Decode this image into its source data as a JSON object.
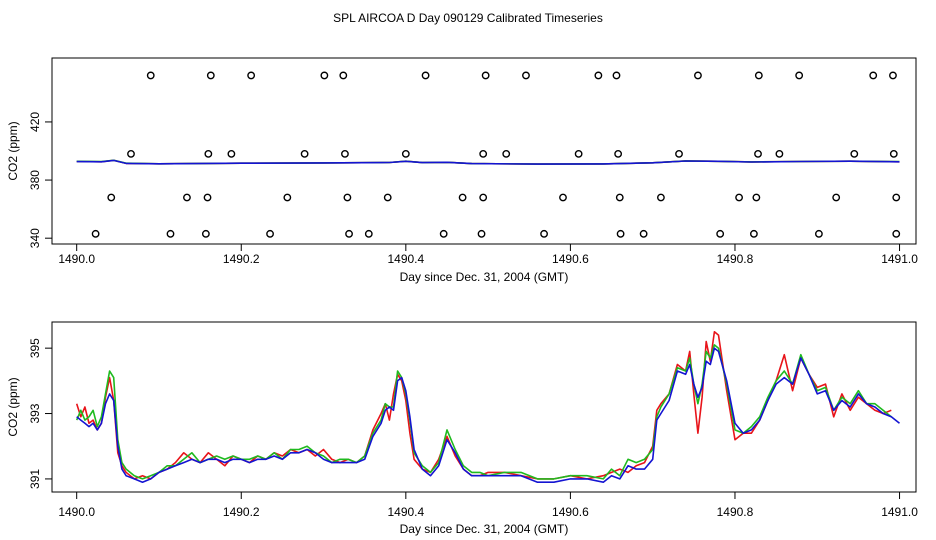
{
  "title": "SPL AIRCOA D  Day 090129  Calibrated Timeseries",
  "colors": {
    "red": "#e8141a",
    "green": "#1fba1f",
    "blue": "#1414d2",
    "axis": "#000000"
  },
  "chart_data": [
    {
      "type": "scatter",
      "id": "top",
      "xlabel": "Day since Dec. 31, 2004 (GMT)",
      "ylabel": "CO2 (ppm)",
      "xlim": [
        1489.97,
        1491.02
      ],
      "ylim": [
        336,
        464
      ],
      "xticks": [
        1490.0,
        1490.2,
        1490.4,
        1490.6,
        1490.8,
        1491.0
      ],
      "xtick_labels": [
        "1490.0",
        "1490.2",
        "1490.4",
        "1490.6",
        "1490.8",
        "1491.0"
      ],
      "yticks": [
        340,
        380,
        420
      ],
      "ytick_labels": [
        "340",
        "380",
        "420"
      ],
      "points_x": [
        1490.09,
        1490.163,
        1490.212,
        1490.301,
        1490.324,
        1490.424,
        1490.497,
        1490.546,
        1490.634,
        1490.656,
        1490.755,
        1490.829,
        1490.878,
        1490.968,
        1490.992,
        1490.066,
        1490.16,
        1490.188,
        1490.277,
        1490.326,
        1490.4,
        1490.494,
        1490.522,
        1490.61,
        1490.658,
        1490.732,
        1490.828,
        1490.854,
        1490.945,
        1490.993,
        1490.042,
        1490.134,
        1490.159,
        1490.256,
        1490.329,
        1490.378,
        1490.469,
        1490.494,
        1490.591,
        1490.66,
        1490.71,
        1490.805,
        1490.826,
        1490.923,
        1490.996,
        1490.023,
        1490.114,
        1490.157,
        1490.235,
        1490.331,
        1490.355,
        1490.446,
        1490.492,
        1490.568,
        1490.661,
        1490.689,
        1490.782,
        1490.823,
        1490.902,
        1490.996
      ],
      "points_y": [
        452,
        452,
        452,
        452,
        452,
        452,
        452,
        452,
        452,
        452,
        452,
        452,
        452,
        452,
        452,
        398,
        398,
        398,
        398,
        398,
        398,
        398,
        398,
        398,
        398,
        398,
        398,
        398,
        398,
        398,
        368,
        368,
        368,
        368,
        368,
        368,
        368,
        368,
        368,
        368,
        368,
        368,
        368,
        368,
        368,
        343,
        343,
        343,
        343,
        343,
        343,
        343,
        343,
        343,
        343,
        343,
        343,
        343,
        343,
        343
      ],
      "series": [
        {
          "name": "red",
          "x": [
            1490.0,
            1490.03,
            1490.045,
            1490.06,
            1490.1,
            1490.2,
            1490.3,
            1490.38,
            1490.4,
            1490.42,
            1490.45,
            1490.48,
            1490.56,
            1490.64,
            1490.7,
            1490.74,
            1490.78,
            1490.82,
            1490.88,
            1490.94,
            1491.0
          ],
          "values": [
            392.8,
            392.6,
            393.6,
            391.5,
            391.2,
            391.6,
            391.8,
            392.1,
            393.0,
            392.0,
            392.2,
            391.3,
            391.0,
            391.1,
            391.9,
            393.2,
            392.9,
            392.5,
            392.8,
            393.0,
            392.6
          ]
        },
        {
          "name": "green",
          "x": [
            1490.0,
            1490.03,
            1490.045,
            1490.06,
            1490.1,
            1490.2,
            1490.3,
            1490.38,
            1490.4,
            1490.42,
            1490.45,
            1490.48,
            1490.56,
            1490.64,
            1490.7,
            1490.74,
            1490.78,
            1490.82,
            1490.88,
            1490.94,
            1491.0
          ],
          "values": [
            392.9,
            392.7,
            393.6,
            391.6,
            391.2,
            391.6,
            391.8,
            392.1,
            393.0,
            392.0,
            392.2,
            391.3,
            391.0,
            391.1,
            391.9,
            393.2,
            392.9,
            392.5,
            392.8,
            393.0,
            392.7
          ]
        },
        {
          "name": "blue",
          "x": [
            1490.0,
            1490.03,
            1490.045,
            1490.06,
            1490.1,
            1490.2,
            1490.3,
            1490.38,
            1490.4,
            1490.42,
            1490.45,
            1490.48,
            1490.56,
            1490.64,
            1490.7,
            1490.74,
            1490.78,
            1490.82,
            1490.88,
            1490.94,
            1491.0
          ],
          "values": [
            392.7,
            392.6,
            393.5,
            391.5,
            391.2,
            391.6,
            391.8,
            392.1,
            392.9,
            392.0,
            392.2,
            391.3,
            391.0,
            391.1,
            391.9,
            393.1,
            392.9,
            392.4,
            392.8,
            393.0,
            392.6
          ]
        }
      ]
    },
    {
      "type": "line",
      "id": "bottom",
      "xlabel": "Day since Dec. 31, 2004 (GMT)",
      "ylabel": "CO2 (ppm)",
      "xlim": [
        1489.97,
        1491.02
      ],
      "ylim": [
        390.6,
        395.8
      ],
      "xticks": [
        1490.0,
        1490.2,
        1490.4,
        1490.6,
        1490.8,
        1491.0
      ],
      "xtick_labels": [
        "1490.0",
        "1490.2",
        "1490.4",
        "1490.6",
        "1490.8",
        "1491.0"
      ],
      "yticks": [
        391,
        393,
        395
      ],
      "ytick_labels": [
        "391",
        "393",
        "395"
      ],
      "series": [
        {
          "name": "red",
          "x": [
            1490.0,
            1490.005,
            1490.01,
            1490.015,
            1490.02,
            1490.025,
            1490.03,
            1490.035,
            1490.04,
            1490.045,
            1490.05,
            1490.055,
            1490.06,
            1490.07,
            1490.08,
            1490.09,
            1490.1,
            1490.11,
            1490.12,
            1490.13,
            1490.14,
            1490.15,
            1490.16,
            1490.17,
            1490.18,
            1490.19,
            1490.2,
            1490.21,
            1490.22,
            1490.23,
            1490.24,
            1490.25,
            1490.26,
            1490.27,
            1490.28,
            1490.29,
            1490.3,
            1490.31,
            1490.32,
            1490.33,
            1490.34,
            1490.35,
            1490.36,
            1490.37,
            1490.375,
            1490.38,
            1490.385,
            1490.39,
            1490.395,
            1490.4,
            1490.405,
            1490.41,
            1490.42,
            1490.43,
            1490.44,
            1490.45,
            1490.46,
            1490.47,
            1490.48,
            1490.49,
            1490.5,
            1490.52,
            1490.54,
            1490.56,
            1490.58,
            1490.6,
            1490.62,
            1490.64,
            1490.65,
            1490.66,
            1490.67,
            1490.68,
            1490.69,
            1490.7,
            1490.705,
            1490.71,
            1490.72,
            1490.73,
            1490.74,
            1490.745,
            1490.75,
            1490.755,
            1490.76,
            1490.765,
            1490.77,
            1490.775,
            1490.78,
            1490.79,
            1490.8,
            1490.81,
            1490.82,
            1490.83,
            1490.84,
            1490.85,
            1490.86,
            1490.87,
            1490.88,
            1490.89,
            1490.9,
            1490.91,
            1490.92,
            1490.93,
            1490.94,
            1490.95,
            1490.96,
            1490.97,
            1490.98,
            1490.99
          ],
          "values": [
            393.3,
            392.9,
            393.2,
            392.7,
            392.8,
            392.5,
            392.7,
            393.5,
            394.1,
            393.4,
            391.8,
            391.4,
            391.2,
            391.0,
            391.1,
            391.0,
            391.2,
            391.3,
            391.5,
            391.8,
            391.6,
            391.5,
            391.8,
            391.6,
            391.4,
            391.7,
            391.6,
            391.5,
            391.7,
            391.6,
            391.8,
            391.7,
            391.9,
            391.8,
            391.9,
            391.7,
            391.9,
            391.6,
            391.5,
            391.6,
            391.5,
            391.7,
            392.5,
            393.0,
            393.3,
            392.8,
            393.6,
            394.2,
            394.0,
            393.4,
            392.4,
            391.6,
            391.3,
            391.2,
            391.6,
            392.3,
            391.7,
            391.3,
            391.1,
            391.1,
            391.2,
            391.2,
            391.1,
            391.0,
            391.0,
            391.1,
            391.0,
            391.1,
            391.2,
            391.3,
            391.2,
            391.4,
            391.5,
            392.0,
            393.1,
            393.3,
            393.6,
            394.5,
            394.3,
            394.9,
            393.6,
            392.4,
            393.5,
            395.2,
            394.6,
            395.5,
            395.4,
            393.7,
            392.2,
            392.4,
            392.4,
            392.8,
            393.4,
            394.0,
            394.8,
            393.7,
            394.7,
            394.2,
            393.8,
            393.9,
            392.9,
            393.6,
            393.1,
            393.5,
            393.3,
            393.1,
            393.0,
            393.1
          ]
        },
        {
          "name": "green",
          "x": [
            1490.0,
            1490.005,
            1490.01,
            1490.015,
            1490.02,
            1490.025,
            1490.03,
            1490.035,
            1490.04,
            1490.045,
            1490.05,
            1490.055,
            1490.06,
            1490.07,
            1490.08,
            1490.09,
            1490.1,
            1490.11,
            1490.12,
            1490.13,
            1490.14,
            1490.15,
            1490.16,
            1490.17,
            1490.18,
            1490.19,
            1490.2,
            1490.21,
            1490.22,
            1490.23,
            1490.24,
            1490.25,
            1490.26,
            1490.27,
            1490.28,
            1490.29,
            1490.3,
            1490.31,
            1490.32,
            1490.33,
            1490.34,
            1490.35,
            1490.36,
            1490.37,
            1490.375,
            1490.38,
            1490.385,
            1490.39,
            1490.395,
            1490.4,
            1490.405,
            1490.41,
            1490.42,
            1490.43,
            1490.44,
            1490.45,
            1490.46,
            1490.47,
            1490.48,
            1490.49,
            1490.5,
            1490.52,
            1490.54,
            1490.56,
            1490.58,
            1490.6,
            1490.62,
            1490.64,
            1490.65,
            1490.66,
            1490.67,
            1490.68,
            1490.69,
            1490.7,
            1490.705,
            1490.71,
            1490.72,
            1490.73,
            1490.74,
            1490.745,
            1490.75,
            1490.755,
            1490.76,
            1490.765,
            1490.77,
            1490.775,
            1490.78,
            1490.79,
            1490.8,
            1490.81,
            1490.82,
            1490.83,
            1490.84,
            1490.85,
            1490.86,
            1490.87,
            1490.88,
            1490.89,
            1490.9,
            1490.91,
            1490.92,
            1490.93,
            1490.94,
            1490.95,
            1490.96,
            1490.97,
            1490.98,
            1490.99
          ],
          "values": [
            392.8,
            393.1,
            392.8,
            392.9,
            393.1,
            392.6,
            392.9,
            393.6,
            394.3,
            394.1,
            392.2,
            391.5,
            391.3,
            391.1,
            391.0,
            391.1,
            391.2,
            391.4,
            391.4,
            391.6,
            391.8,
            391.5,
            391.6,
            391.7,
            391.6,
            391.7,
            391.6,
            391.6,
            391.7,
            391.6,
            391.8,
            391.6,
            391.9,
            391.9,
            392.0,
            391.8,
            391.7,
            391.5,
            391.6,
            391.6,
            391.5,
            391.7,
            392.4,
            392.8,
            393.3,
            393.2,
            393.2,
            394.3,
            394.1,
            393.6,
            392.8,
            391.8,
            391.4,
            391.2,
            391.5,
            392.5,
            391.9,
            391.4,
            391.2,
            391.2,
            391.1,
            391.2,
            391.2,
            391.0,
            391.0,
            391.1,
            391.1,
            391.0,
            391.3,
            391.1,
            391.6,
            391.5,
            391.6,
            391.9,
            392.9,
            393.2,
            393.6,
            394.4,
            394.3,
            394.7,
            393.9,
            393.3,
            393.9,
            394.9,
            394.7,
            395.1,
            395.0,
            393.9,
            392.5,
            392.4,
            392.6,
            392.9,
            393.5,
            394.0,
            394.3,
            393.9,
            394.8,
            394.2,
            393.7,
            393.8,
            393.1,
            393.5,
            393.3,
            393.7,
            393.3,
            393.3,
            393.1,
            392.9
          ]
        },
        {
          "name": "blue",
          "x": [
            1490.0,
            1490.005,
            1490.01,
            1490.015,
            1490.02,
            1490.025,
            1490.03,
            1490.035,
            1490.04,
            1490.045,
            1490.05,
            1490.055,
            1490.06,
            1490.07,
            1490.08,
            1490.09,
            1490.1,
            1490.11,
            1490.12,
            1490.13,
            1490.14,
            1490.15,
            1490.16,
            1490.17,
            1490.18,
            1490.19,
            1490.2,
            1490.21,
            1490.22,
            1490.23,
            1490.24,
            1490.25,
            1490.26,
            1490.27,
            1490.28,
            1490.29,
            1490.3,
            1490.31,
            1490.32,
            1490.33,
            1490.34,
            1490.35,
            1490.36,
            1490.37,
            1490.375,
            1490.38,
            1490.385,
            1490.39,
            1490.395,
            1490.4,
            1490.405,
            1490.41,
            1490.42,
            1490.43,
            1490.44,
            1490.45,
            1490.46,
            1490.47,
            1490.48,
            1490.49,
            1490.5,
            1490.52,
            1490.54,
            1490.56,
            1490.58,
            1490.6,
            1490.62,
            1490.64,
            1490.65,
            1490.66,
            1490.67,
            1490.68,
            1490.69,
            1490.7,
            1490.705,
            1490.71,
            1490.72,
            1490.73,
            1490.74,
            1490.745,
            1490.75,
            1490.755,
            1490.76,
            1490.765,
            1490.77,
            1490.775,
            1490.78,
            1490.79,
            1490.8,
            1490.81,
            1490.82,
            1490.83,
            1490.84,
            1490.85,
            1490.86,
            1490.87,
            1490.88,
            1490.89,
            1490.9,
            1490.91,
            1490.92,
            1490.93,
            1490.94,
            1490.95,
            1490.96,
            1490.97,
            1490.98,
            1490.99,
            1491.0
          ],
          "values": [
            392.9,
            392.8,
            392.7,
            392.6,
            392.7,
            392.5,
            392.7,
            393.3,
            393.6,
            393.4,
            392.0,
            391.3,
            391.1,
            391.0,
            390.9,
            391.0,
            391.2,
            391.3,
            391.4,
            391.5,
            391.6,
            391.5,
            391.6,
            391.6,
            391.5,
            391.6,
            391.6,
            391.5,
            391.6,
            391.6,
            391.7,
            391.6,
            391.8,
            391.8,
            391.9,
            391.8,
            391.6,
            391.5,
            391.5,
            391.5,
            391.5,
            391.6,
            392.3,
            392.7,
            393.1,
            393.2,
            393.1,
            394.0,
            394.1,
            393.7,
            392.9,
            391.9,
            391.3,
            391.1,
            391.4,
            392.2,
            391.8,
            391.3,
            391.1,
            391.1,
            391.1,
            391.1,
            391.1,
            390.9,
            390.9,
            391.0,
            391.0,
            390.9,
            391.1,
            391.0,
            391.4,
            391.3,
            391.3,
            391.6,
            392.8,
            393.0,
            393.4,
            394.3,
            394.2,
            394.5,
            393.9,
            393.5,
            393.8,
            394.6,
            394.5,
            395.0,
            394.9,
            394.0,
            392.7,
            392.4,
            392.5,
            392.8,
            393.4,
            393.9,
            394.1,
            393.9,
            394.7,
            394.2,
            393.6,
            393.7,
            393.1,
            393.4,
            393.2,
            393.6,
            393.3,
            393.2,
            393.0,
            392.9,
            392.7
          ]
        }
      ]
    }
  ]
}
